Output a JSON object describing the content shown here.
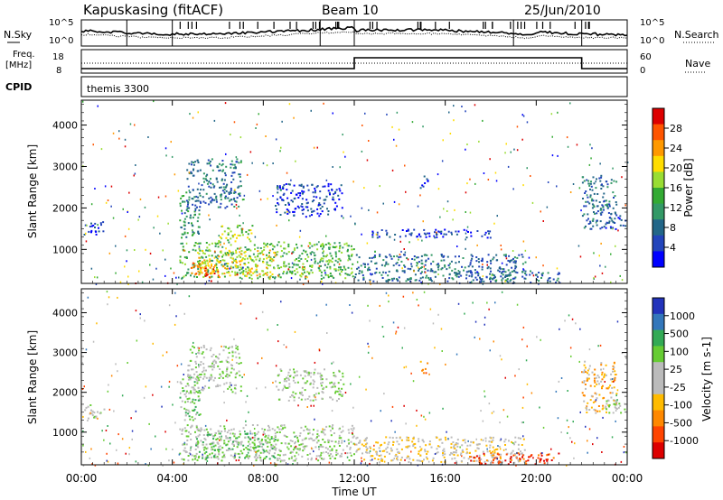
{
  "header": {
    "station": "Kapuskasing (fitACF)",
    "beam": "Beam 10",
    "date": "25/Jun/2010"
  },
  "strip_labels": {
    "nsky": "N.Sky",
    "nsearch": "N.Search",
    "freq_top": "Freq.",
    "freq_unit": "[MHz]",
    "nave": "Nave",
    "cpid": "CPID",
    "cpid_value": "themis 3300",
    "nsky_ticks": [
      "10^5",
      "10^0"
    ],
    "nsearch_ticks": [
      "10^5",
      "10^0"
    ],
    "freq_ticks": [
      "18",
      "8"
    ],
    "nave_ticks": [
      "60",
      "0"
    ]
  },
  "chart_data": [
    {
      "type": "heatmap",
      "title": "",
      "xlabel": "Time UT",
      "ylabel": "Slant Range [km]",
      "xlim": [
        0,
        24
      ],
      "ylim": [
        180,
        4600
      ],
      "x_ticks": [
        0,
        4,
        8,
        12,
        16,
        20,
        24
      ],
      "x_tick_labels": [
        "00:00",
        "04:00",
        "08:00",
        "12:00",
        "16:00",
        "20:00",
        "00:00"
      ],
      "y_ticks": [
        1000,
        2000,
        3000,
        4000
      ],
      "y_tick_labels": [
        "1000",
        "2000",
        "3000",
        "4000"
      ],
      "colorbar": {
        "label": "Power [dB]",
        "ticks": [
          "28",
          "24",
          "20",
          "16",
          "12",
          "8",
          "4"
        ],
        "colors": [
          "#dd0000",
          "#ff5500",
          "#ff9900",
          "#ffdd00",
          "#99dd33",
          "#33aa33",
          "#339966",
          "#226688",
          "#2244bb",
          "#0000ff"
        ]
      },
      "regions": [
        {
          "t0": 0.1,
          "t1": 1.0,
          "r0": 1350,
          "r1": 1700,
          "level": 8
        },
        {
          "t0": 4.3,
          "t1": 5.2,
          "r0": 1300,
          "r1": 2400,
          "level": 6
        },
        {
          "t0": 4.6,
          "t1": 7.0,
          "r0": 2000,
          "r1": 3200,
          "level": 7
        },
        {
          "t0": 4.3,
          "t1": 12.0,
          "r0": 300,
          "r1": 1200,
          "level": 5
        },
        {
          "t0": 4.8,
          "t1": 6.0,
          "r0": 250,
          "r1": 700,
          "level": 1
        },
        {
          "t0": 5.0,
          "t1": 8.5,
          "r0": 350,
          "r1": 1000,
          "level": 3
        },
        {
          "t0": 6.0,
          "t1": 7.5,
          "r0": 1200,
          "r1": 1600,
          "level": 4
        },
        {
          "t0": 8.5,
          "t1": 11.5,
          "r0": 1800,
          "r1": 2600,
          "level": 8
        },
        {
          "t0": 12.0,
          "t1": 19.5,
          "r0": 250,
          "r1": 900,
          "level": 7
        },
        {
          "t0": 12.5,
          "t1": 18.0,
          "r0": 1300,
          "r1": 1500,
          "level": 8
        },
        {
          "t0": 14.8,
          "t1": 15.2,
          "r0": 2500,
          "r1": 2800,
          "level": 8
        },
        {
          "t0": 17.0,
          "t1": 21.0,
          "r0": 200,
          "r1": 500,
          "level": 7
        },
        {
          "t0": 22.0,
          "t1": 23.5,
          "r0": 1500,
          "r1": 2800,
          "level": 7
        },
        {
          "t0": 23.0,
          "t1": 23.9,
          "r0": 1500,
          "r1": 1900,
          "level": 8
        }
      ]
    },
    {
      "type": "heatmap",
      "title": "",
      "xlabel": "Time UT",
      "ylabel": "Slant Range [km]",
      "xlim": [
        0,
        24
      ],
      "ylim": [
        180,
        4600
      ],
      "x_ticks": [
        0,
        4,
        8,
        12,
        16,
        20,
        24
      ],
      "x_tick_labels": [
        "00:00",
        "04:00",
        "08:00",
        "12:00",
        "16:00",
        "20:00",
        "00:00"
      ],
      "y_ticks": [
        1000,
        2000,
        3000,
        4000
      ],
      "y_tick_labels": [
        "1000",
        "2000",
        "3000",
        "4000"
      ],
      "colorbar": {
        "label": "Velocity [m s-1]",
        "ticks": [
          "1000",
          "500",
          "100",
          "25",
          "-25",
          "-100",
          "-500",
          "-1000"
        ],
        "colors": [
          "#2233bb",
          "#3377bb",
          "#33aa55",
          "#66cc33",
          "#bbbbbb",
          "#bbbbbb",
          "#ffbb00",
          "#ff8800",
          "#ff4400",
          "#dd0000"
        ]
      },
      "regions": [
        {
          "t0": 0.1,
          "t1": 1.0,
          "r0": 1350,
          "r1": 1700,
          "level": 4
        },
        {
          "t0": 4.3,
          "t1": 5.2,
          "r0": 1300,
          "r1": 2400,
          "level": 3
        },
        {
          "t0": 4.6,
          "t1": 7.0,
          "r0": 2000,
          "r1": 3200,
          "level": 4
        },
        {
          "t0": 4.3,
          "t1": 12.0,
          "r0": 300,
          "r1": 1200,
          "level": 4
        },
        {
          "t0": 5.0,
          "t1": 8.5,
          "r0": 350,
          "r1": 1000,
          "level": 3
        },
        {
          "t0": 8.5,
          "t1": 11.5,
          "r0": 1800,
          "r1": 2600,
          "level": 4
        },
        {
          "t0": 12.0,
          "t1": 19.5,
          "r0": 250,
          "r1": 900,
          "level": 5
        },
        {
          "t0": 14.8,
          "t1": 15.2,
          "r0": 2500,
          "r1": 2800,
          "level": 7
        },
        {
          "t0": 17.0,
          "t1": 21.0,
          "r0": 200,
          "r1": 500,
          "level": 8
        },
        {
          "t0": 22.0,
          "t1": 23.5,
          "r0": 1500,
          "r1": 2800,
          "level": 6
        },
        {
          "t0": 23.0,
          "t1": 23.9,
          "r0": 1500,
          "r1": 1900,
          "level": 4
        }
      ]
    }
  ],
  "strips": {
    "freq_change_times": [
      12.0,
      22.0
    ],
    "nsky_dips": [
      2.0,
      4.0,
      10.5,
      12.0,
      19.0,
      22.0
    ]
  }
}
